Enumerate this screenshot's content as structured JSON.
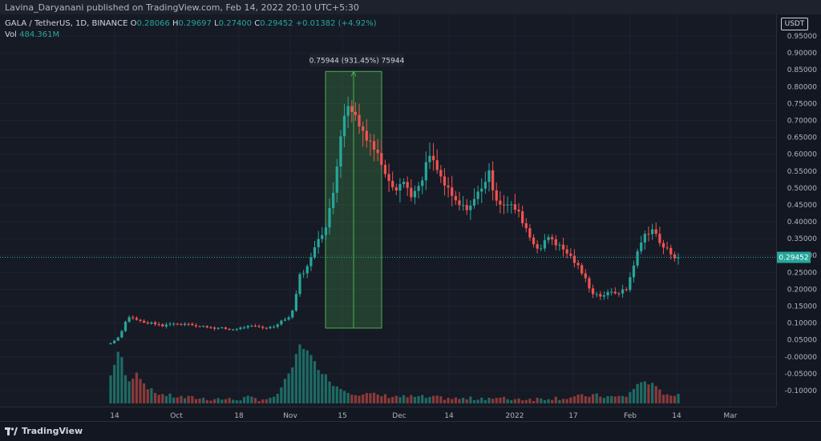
{
  "publish_bar": "Lavina_Daryanani published on TradingView.com, Feb 14, 2022 20:10 UTC+5:30",
  "legend": {
    "symbol": "GALA / TetherUS, 1D, BINANCE",
    "ohlc_keys": [
      "O",
      "H",
      "L",
      "C"
    ],
    "ohlc_values": [
      "0.28066",
      "0.29697",
      "0.27400",
      "0.29452"
    ],
    "change": "+0.01382 (+4.92%)",
    "vol_label": "Vol",
    "vol_value": "484.361M"
  },
  "currency_button": "USDT",
  "measure_label": "0.75944 (931.45%) 75944",
  "current_price": "0.29452",
  "price_ticks": [
    "0.95000",
    "0.90000",
    "0.85000",
    "0.80000",
    "0.75000",
    "0.70000",
    "0.65000",
    "0.60000",
    "0.55000",
    "0.50000",
    "0.45000",
    "0.40000",
    "0.35000",
    "0.30000",
    "0.25000",
    "0.20000",
    "0.15000",
    "0.10000",
    "0.05000",
    "-0.00000",
    "-0.05000",
    "-0.10000"
  ],
  "time_ticks": [
    "14",
    "Oct",
    "18",
    "Nov",
    "15",
    "Dec",
    "14",
    "2022",
    "17",
    "Feb",
    "14",
    "Mar"
  ],
  "footer_brand": "TradingView",
  "colors": {
    "up": "#26a69a",
    "down": "#ef5350",
    "background": "#131722",
    "measure": "#4caf50"
  },
  "icons": [
    "tradingview-logo-icon"
  ],
  "chart_data": {
    "type": "candlestick",
    "title": "GALA / TetherUS, 1D, BINANCE",
    "ylim": [
      -0.12,
      0.96
    ],
    "x_ticks": [
      "14",
      "Oct",
      "18",
      "Nov",
      "15",
      "Dec",
      "14",
      "2022",
      "17",
      "Feb",
      "14",
      "Mar"
    ],
    "close_anchors": [
      0.04,
      0.06,
      0.12,
      0.11,
      0.1,
      0.1,
      0.09,
      0.1,
      0.095,
      0.1,
      0.09,
      0.09,
      0.085,
      0.085,
      0.08,
      0.085,
      0.09,
      0.09,
      0.085,
      0.09,
      0.11,
      0.12,
      0.24,
      0.27,
      0.35,
      0.38,
      0.5,
      0.72,
      0.74,
      0.68,
      0.65,
      0.6,
      0.55,
      0.5,
      0.52,
      0.48,
      0.5,
      0.6,
      0.55,
      0.5,
      0.46,
      0.44,
      0.45,
      0.5,
      0.54,
      0.46,
      0.45,
      0.44,
      0.4,
      0.34,
      0.32,
      0.36,
      0.33,
      0.31,
      0.28,
      0.24,
      0.19,
      0.18,
      0.19,
      0.19,
      0.2,
      0.29,
      0.36,
      0.38,
      0.33,
      0.31,
      0.29
    ],
    "volume_anchors": [
      0.3,
      0.6,
      0.2,
      0.35,
      0.2,
      0.12,
      0.1,
      0.08,
      0.07,
      0.06,
      0.06,
      0.05,
      0.05,
      0.05,
      0.04,
      0.05,
      0.06,
      0.05,
      0.05,
      0.05,
      0.2,
      0.35,
      0.65,
      0.55,
      0.4,
      0.3,
      0.2,
      0.15,
      0.12,
      0.1,
      0.1,
      0.09,
      0.08,
      0.08,
      0.07,
      0.07,
      0.07,
      0.06,
      0.06,
      0.06,
      0.05,
      0.05,
      0.05,
      0.06,
      0.06,
      0.05,
      0.05,
      0.05,
      0.05,
      0.05,
      0.05,
      0.06,
      0.06,
      0.06,
      0.07,
      0.08,
      0.09,
      0.08,
      0.07,
      0.07,
      0.08,
      0.18,
      0.25,
      0.2,
      0.12,
      0.1,
      0.08
    ],
    "last": {
      "open": 0.28066,
      "high": 0.29697,
      "low": 0.274,
      "close": 0.29452
    },
    "volume_last": "484.361M",
    "measure": {
      "from": 0.085,
      "to": 0.845,
      "label": "0.75944 (931.45%) 75944"
    }
  }
}
